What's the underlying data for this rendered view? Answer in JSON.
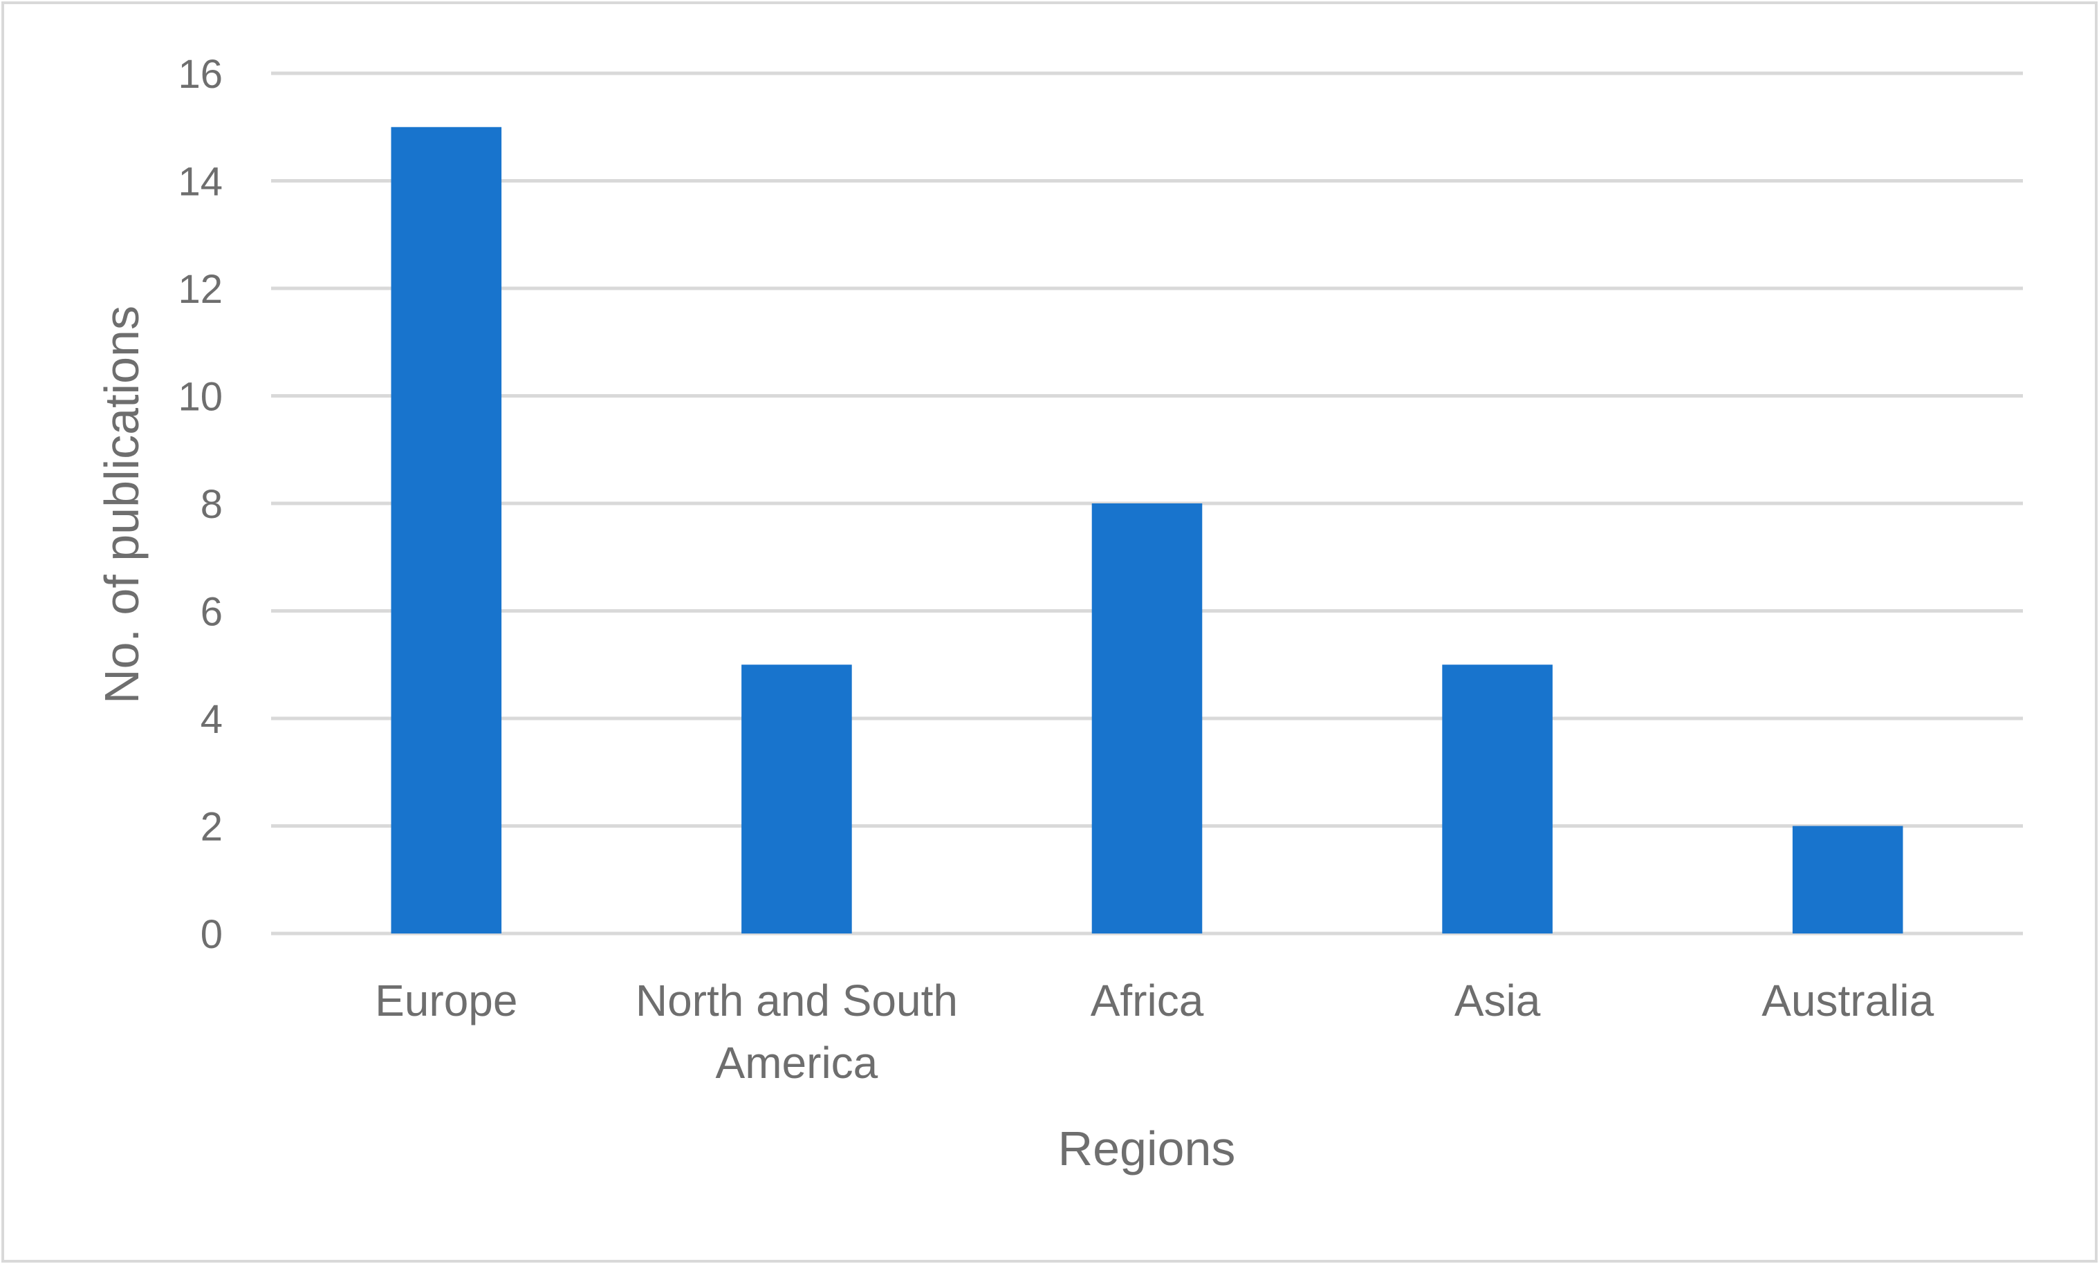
{
  "chart_data": {
    "type": "bar",
    "title": "",
    "xlabel": "Regions",
    "ylabel": "No. of publications",
    "categories": [
      [
        "Europe"
      ],
      [
        "North and South",
        "America"
      ],
      [
        "Africa"
      ],
      [
        "Asia"
      ],
      [
        "Australia"
      ]
    ],
    "values": [
      15,
      5,
      8,
      5,
      2
    ],
    "ylim": [
      0,
      16
    ],
    "yticks": [
      "0",
      "2",
      "4",
      "6",
      "8",
      "10",
      "12",
      "14",
      "16"
    ],
    "grid": true,
    "legend": "none",
    "colors": {
      "bar": "#1874CD",
      "grid": "#D9D9D9",
      "text": "#6E6E6E"
    }
  }
}
